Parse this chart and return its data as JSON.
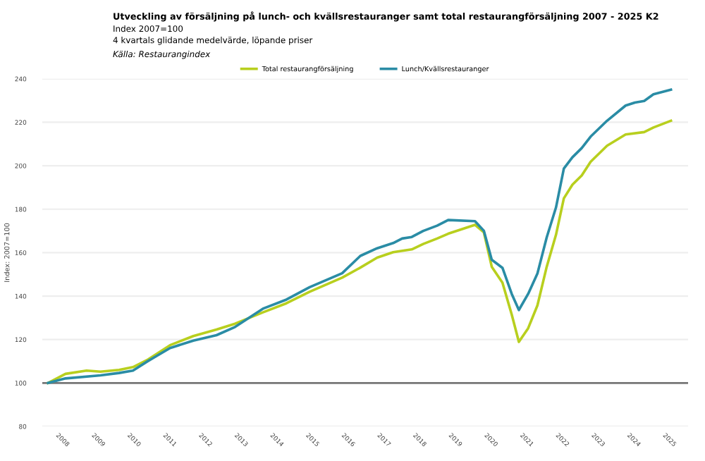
{
  "chart_data": {
    "type": "line",
    "title": "Utveckling av försäljning på lunch- och kvällsrestauranger samt total restaurangförsäljning 2007 - 2025 K2",
    "subtitle": "Index 2007=100\n4 kvartals glidande medelvärde, löpande priser",
    "annotations": [
      "Källa: Restaurangindex"
    ],
    "ylabel": "Index: 2007=100",
    "series": [
      {
        "name": "Total restaurangförsäljning",
        "color": "#b8cf1e",
        "x": [
          2007.69,
          2008.18,
          2008.77,
          2009.16,
          2009.68,
          2010.07,
          2010.46,
          2011.11,
          2011.76,
          2012.41,
          2012.93,
          2013.71,
          2014.37,
          2015.02,
          2015.93,
          2016.44,
          2016.91,
          2017.36,
          2017.88,
          2018.2,
          2018.59,
          2018.9,
          2019.65,
          2019.9,
          2020.12,
          2020.42,
          2020.68,
          2020.88,
          2021.14,
          2021.4,
          2021.66,
          2021.92,
          2022.14,
          2022.38,
          2022.64,
          2022.89,
          2023.35,
          2023.87,
          2024.39,
          2024.65,
          2025.14
        ],
        "values": [
          100,
          104.2,
          105.7,
          105.2,
          106,
          107.3,
          110.5,
          117.4,
          121.6,
          124.6,
          127.3,
          132.5,
          136.7,
          142,
          148.5,
          153.1,
          157.7,
          160.2,
          161.5,
          164,
          166.5,
          168.7,
          172.8,
          169.3,
          153.5,
          146.2,
          131.5,
          118.9,
          125.2,
          135.7,
          153.5,
          168.2,
          185,
          191.3,
          195.5,
          201.8,
          209.2,
          214.4,
          215.5,
          217.6,
          220.7
        ]
      },
      {
        "name": "Lunch/Kvällsrestauranger",
        "color": "#2a8ca5",
        "x": [
          2007.69,
          2008.18,
          2009.16,
          2009.68,
          2010.07,
          2010.46,
          2011.11,
          2011.76,
          2012.41,
          2012.93,
          2013.71,
          2014.37,
          2015.02,
          2015.93,
          2016.44,
          2016.91,
          2017.36,
          2017.61,
          2017.88,
          2018.2,
          2018.59,
          2018.9,
          2019.65,
          2019.9,
          2020.12,
          2020.42,
          2020.68,
          2020.88,
          2021.14,
          2021.4,
          2021.66,
          2021.92,
          2022.14,
          2022.38,
          2022.64,
          2022.89,
          2023.35,
          2023.87,
          2024.13,
          2024.39,
          2024.65,
          2025.14
        ],
        "values": [
          100,
          102.1,
          103.5,
          104.6,
          105.7,
          109.8,
          116.1,
          119.5,
          122,
          125.8,
          134.2,
          138.4,
          144.1,
          150.5,
          158.5,
          162,
          164.4,
          166.5,
          167.2,
          170,
          172.4,
          175,
          174.5,
          170,
          156.7,
          153,
          141,
          133.6,
          141,
          150.4,
          167,
          180.8,
          198.7,
          203.9,
          208.1,
          213.4,
          220.7,
          227.7,
          229.1,
          229.8,
          232.9,
          235
        ]
      }
    ],
    "xlim": [
      2007.53,
      2025.62
    ],
    "xticks": [
      2008,
      2009,
      2010,
      2011,
      2012,
      2013,
      2014,
      2015,
      2016,
      2017,
      2018,
      2019,
      2020,
      2021,
      2022,
      2023,
      2024,
      2025
    ],
    "ylim": [
      80,
      240
    ],
    "yticks": [
      80,
      100,
      120,
      140,
      160,
      180,
      200,
      220,
      240
    ],
    "ref_lines": [
      {
        "axis": "y",
        "value": 100,
        "color": "#777777"
      }
    ],
    "grid": "y",
    "legend": "top"
  }
}
